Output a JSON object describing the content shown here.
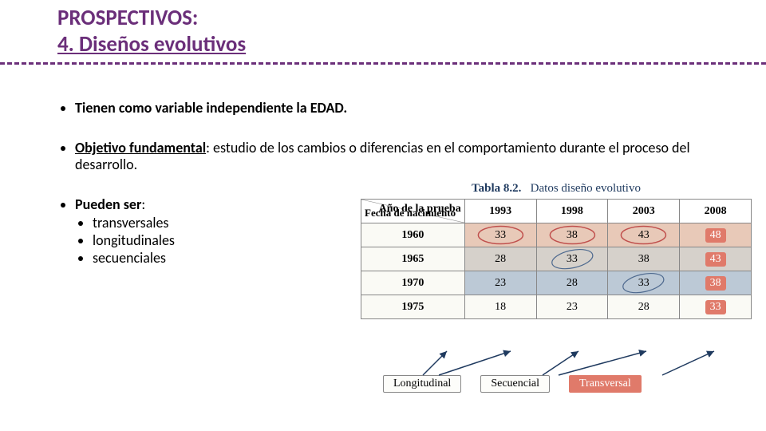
{
  "title": {
    "line1": "PROSPECTIVOS:",
    "line2": "4. Diseños evolutivos",
    "color": "#6b2f7a"
  },
  "divider_color": "#6b2f7a",
  "bullets": {
    "b1": "Tienen como variable independiente la EDAD.",
    "b2_label": "Objetivo fundamental",
    "b2_rest": ": estudio de los cambios o diferencias en el comportamiento durante el proceso del desarrollo.",
    "b3_label": "Pueden ser",
    "b3_colon": ":",
    "sub1": "transversales",
    "sub2": "longitudinales",
    "sub3": "secuenciales"
  },
  "table": {
    "title_prefix": "Tabla 8.2.",
    "title_rest": "Datos diseño evolutivo",
    "title_color": "#1f3a5f",
    "header_top": "Año de la prueba",
    "header_left": "Fecha de nacimiento",
    "years": [
      "1993",
      "1998",
      "2003",
      "2008"
    ],
    "birth_years": [
      "1960",
      "1965",
      "1970",
      "1975"
    ],
    "cells": [
      [
        "33",
        "38",
        "43",
        "48"
      ],
      [
        "28",
        "33",
        "38",
        "43"
      ],
      [
        "23",
        "28",
        "33",
        "38"
      ],
      [
        "18",
        "23",
        "28",
        "33"
      ]
    ],
    "row_colors": [
      "#e8c9b8",
      "#d6d1cb",
      "#bcc9d6",
      "#fafaf5"
    ],
    "transversal_highlight_bg": "#e07a6a",
    "transversal_highlight_text": "#ffffff",
    "longitudinal_circle_color": "#c0504d",
    "secuencial_circle_color": "#4f6a8f"
  },
  "legend": {
    "longitudinal": "Longitudinal",
    "secuencial": "Secuencial",
    "transversal": "Transversal",
    "transversal_bg": "#e07a6a",
    "transversal_text": "#ffffff"
  }
}
